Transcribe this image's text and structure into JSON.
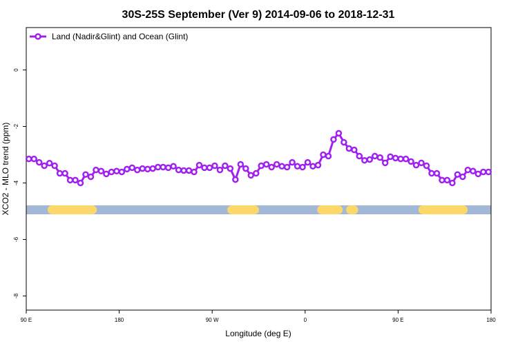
{
  "chart_data": {
    "type": "line",
    "title": "30S-25S September (Ver 9)   2014-09-06 to 2018-12-31",
    "xlabel": "Longitude (deg E)",
    "ylabel": "XCO2 - MLO trend (ppm)",
    "xlim": [
      90,
      540
    ],
    "ylim": [
      -8.5,
      1.5
    ],
    "xticks": [
      {
        "value": 90,
        "label": "90 E"
      },
      {
        "value": 180,
        "label": "180"
      },
      {
        "value": 270,
        "label": "90 W"
      },
      {
        "value": 360,
        "label": "0"
      },
      {
        "value": 450,
        "label": "90 E"
      },
      {
        "value": 540,
        "label": "180"
      }
    ],
    "yticks": [
      0,
      -2,
      -4,
      -6,
      -8
    ],
    "legend": "top-left",
    "x": [
      92.5,
      97.5,
      102.5,
      107.5,
      112.5,
      117.5,
      122.5,
      127.5,
      132.5,
      137.5,
      142.5,
      147.5,
      152.5,
      157.5,
      162.5,
      167.5,
      172.5,
      177.5,
      182.5,
      187.5,
      192.5,
      197.5,
      202.5,
      207.5,
      212.5,
      217.5,
      222.5,
      227.5,
      232.5,
      237.5,
      242.5,
      247.5,
      252.5,
      257.5,
      262.5,
      267.5,
      272.5,
      277.5,
      282.5,
      287.5,
      292.5,
      297.5,
      302.5,
      307.5,
      312.5,
      317.5,
      322.5,
      327.5,
      332.5,
      337.5,
      342.5,
      347.5,
      352.5,
      357.5,
      362.5,
      367.5,
      372.5,
      377.5,
      382.5,
      387.5,
      392.5,
      397.5,
      402.5,
      407.5,
      412.5,
      417.5,
      422.5,
      427.5,
      432.5,
      437.5,
      442.5,
      447.5,
      452.5,
      457.5,
      462.5,
      467.5,
      472.5,
      477.5,
      482.5,
      487.5,
      492.5,
      497.5,
      502.5,
      507.5,
      512.5,
      517.5,
      522.5,
      527.5,
      532.5,
      537.5
    ],
    "series": [
      {
        "name": "Land (Nadir&Glint) and Ocean (Glint)",
        "color": "#a020f0",
        "values": [
          -3.15,
          -3.15,
          -3.27,
          -3.39,
          -3.3,
          -3.39,
          -3.66,
          -3.66,
          -3.9,
          -3.9,
          -4.0,
          -3.7,
          -3.78,
          -3.54,
          -3.58,
          -3.68,
          -3.61,
          -3.58,
          -3.61,
          -3.51,
          -3.46,
          -3.54,
          -3.49,
          -3.51,
          -3.49,
          -3.44,
          -3.44,
          -3.46,
          -3.41,
          -3.54,
          -3.56,
          -3.56,
          -3.61,
          -3.37,
          -3.46,
          -3.46,
          -3.39,
          -3.54,
          -3.39,
          -3.49,
          -3.88,
          -3.34,
          -3.49,
          -3.73,
          -3.66,
          -3.39,
          -3.34,
          -3.44,
          -3.34,
          -3.41,
          -3.44,
          -3.27,
          -3.41,
          -3.44,
          -3.27,
          -3.41,
          -3.37,
          -3.0,
          -3.05,
          -2.46,
          -2.24,
          -2.56,
          -2.78,
          -2.83,
          -3.05,
          -3.2,
          -3.17,
          -3.05,
          -3.1,
          -3.29,
          -3.07,
          -3.12,
          -3.15,
          -3.15,
          -3.24,
          -3.37,
          -3.29,
          -3.39,
          -3.66,
          -3.66,
          -3.9,
          -3.9,
          -4.0,
          -3.7,
          -3.78,
          -3.54,
          -3.58,
          -3.68,
          -3.61,
          -3.61
        ]
      }
    ],
    "surface_band": {
      "y": -4.95,
      "ocean_color": "#a3b8d6",
      "land_color": "#fcd86a",
      "land": [
        [
          115,
          154
        ],
        [
          289,
          311
        ],
        [
          376,
          392
        ],
        [
          404,
          407
        ],
        [
          474,
          513
        ]
      ]
    }
  }
}
